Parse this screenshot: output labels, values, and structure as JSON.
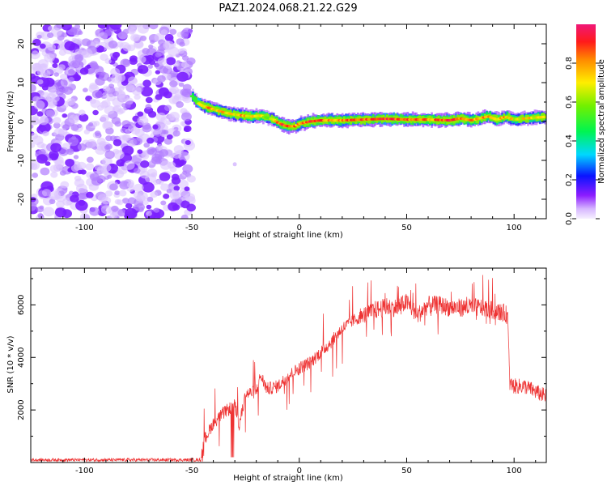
{
  "title": "PAZ1.2024.068.21.22.G29",
  "colors": {
    "snr_line": "#ee3333",
    "axis": "#000000",
    "noise": "#7b1fff"
  },
  "chart_data": [
    {
      "type": "heatmap",
      "xlabel": "Height of straight line (km)",
      "ylabel": "Frequency (Hz)",
      "xlim": [
        -125,
        115
      ],
      "ylim": [
        -25,
        25
      ],
      "xticks": [
        -100,
        -50,
        0,
        50,
        100
      ],
      "xtick_labels": [
        "-100",
        "-50",
        "0",
        "50",
        "100"
      ],
      "yticks": [
        -20,
        -10,
        0,
        10,
        20
      ],
      "ytick_labels": [
        "-20",
        "-10",
        "0",
        "10",
        "20"
      ],
      "colorbar": {
        "label": "Normalized spectral amplitude",
        "ticks": [
          0.0,
          0.2,
          0.4,
          0.6,
          0.8
        ],
        "tick_labels": [
          "0.0",
          "0.2",
          "0.4",
          "0.6",
          "0.8"
        ],
        "range": [
          0,
          1
        ]
      },
      "noise_region_x": [
        -125,
        -50
      ],
      "ridge": {
        "x": [
          -50,
          -48,
          -45,
          -42,
          -38,
          -34,
          -30,
          -26,
          -22,
          -18,
          -15,
          -12,
          -10,
          -7,
          -5,
          -2,
          0,
          5,
          10,
          20,
          30,
          40,
          50,
          60,
          70,
          75,
          80,
          84,
          88,
          92,
          96,
          100,
          105,
          110,
          115
        ],
        "y": [
          6.5,
          5,
          4,
          3.5,
          2.8,
          2.2,
          1.8,
          1.5,
          1.3,
          1.5,
          1.0,
          0.5,
          -0.3,
          -1,
          -1.2,
          -1.2,
          -0.6,
          0,
          0.3,
          0.3,
          0.5,
          0.7,
          0.5,
          0.5,
          0.3,
          0.8,
          0.3,
          0.8,
          1.3,
          0.5,
          1.2,
          0.5,
          0.8,
          1.0,
          1.2
        ],
        "amplitude": [
          0.45,
          0.55,
          0.7,
          0.8,
          0.7,
          0.75,
          0.65,
          0.8,
          0.7,
          0.75,
          0.6,
          0.7,
          0.8,
          0.9,
          0.9,
          0.8,
          0.75,
          0.9,
          0.85,
          0.8,
          0.85,
          0.9,
          0.85,
          0.8,
          0.9,
          0.85,
          0.8,
          0.75,
          0.8,
          0.7,
          0.75,
          0.7,
          0.7,
          0.7,
          0.7
        ]
      }
    },
    {
      "type": "line",
      "xlabel": "Height of straight line (km)",
      "ylabel": "SNR (10 * v/v)",
      "xlim": [
        -125,
        115
      ],
      "ylim": [
        0,
        7400
      ],
      "xticks": [
        -100,
        -50,
        0,
        50,
        100
      ],
      "xtick_labels": [
        "-100",
        "-50",
        "0",
        "50",
        "100"
      ],
      "yticks": [
        2000,
        4000,
        6000
      ],
      "ytick_labels": [
        "2000",
        "4000",
        "6000"
      ],
      "series": [
        {
          "x": [
            -125,
            -110,
            -100,
            -90,
            -80,
            -70,
            -60,
            -50,
            -46,
            -44,
            -40,
            -35,
            -30,
            -28,
            -25,
            -20,
            -18,
            -15,
            -10,
            -5,
            0,
            5,
            10,
            15,
            20,
            25,
            30,
            35,
            40,
            45,
            50,
            55,
            60,
            65,
            70,
            75,
            80,
            85,
            90,
            95,
            97,
            98,
            100,
            105,
            110,
            115
          ],
          "values": [
            100,
            100,
            100,
            100,
            100,
            100,
            100,
            100,
            100,
            900,
            1500,
            1900,
            2200,
            1400,
            2600,
            2700,
            3300,
            2800,
            2900,
            3300,
            3600,
            3800,
            4200,
            4600,
            5100,
            5400,
            5600,
            5800,
            5900,
            5900,
            6100,
            5600,
            6000,
            6000,
            5900,
            5900,
            5900,
            5900,
            5800,
            5700,
            5600,
            3000,
            2900,
            2900,
            2700,
            2500
          ]
        }
      ]
    }
  ]
}
